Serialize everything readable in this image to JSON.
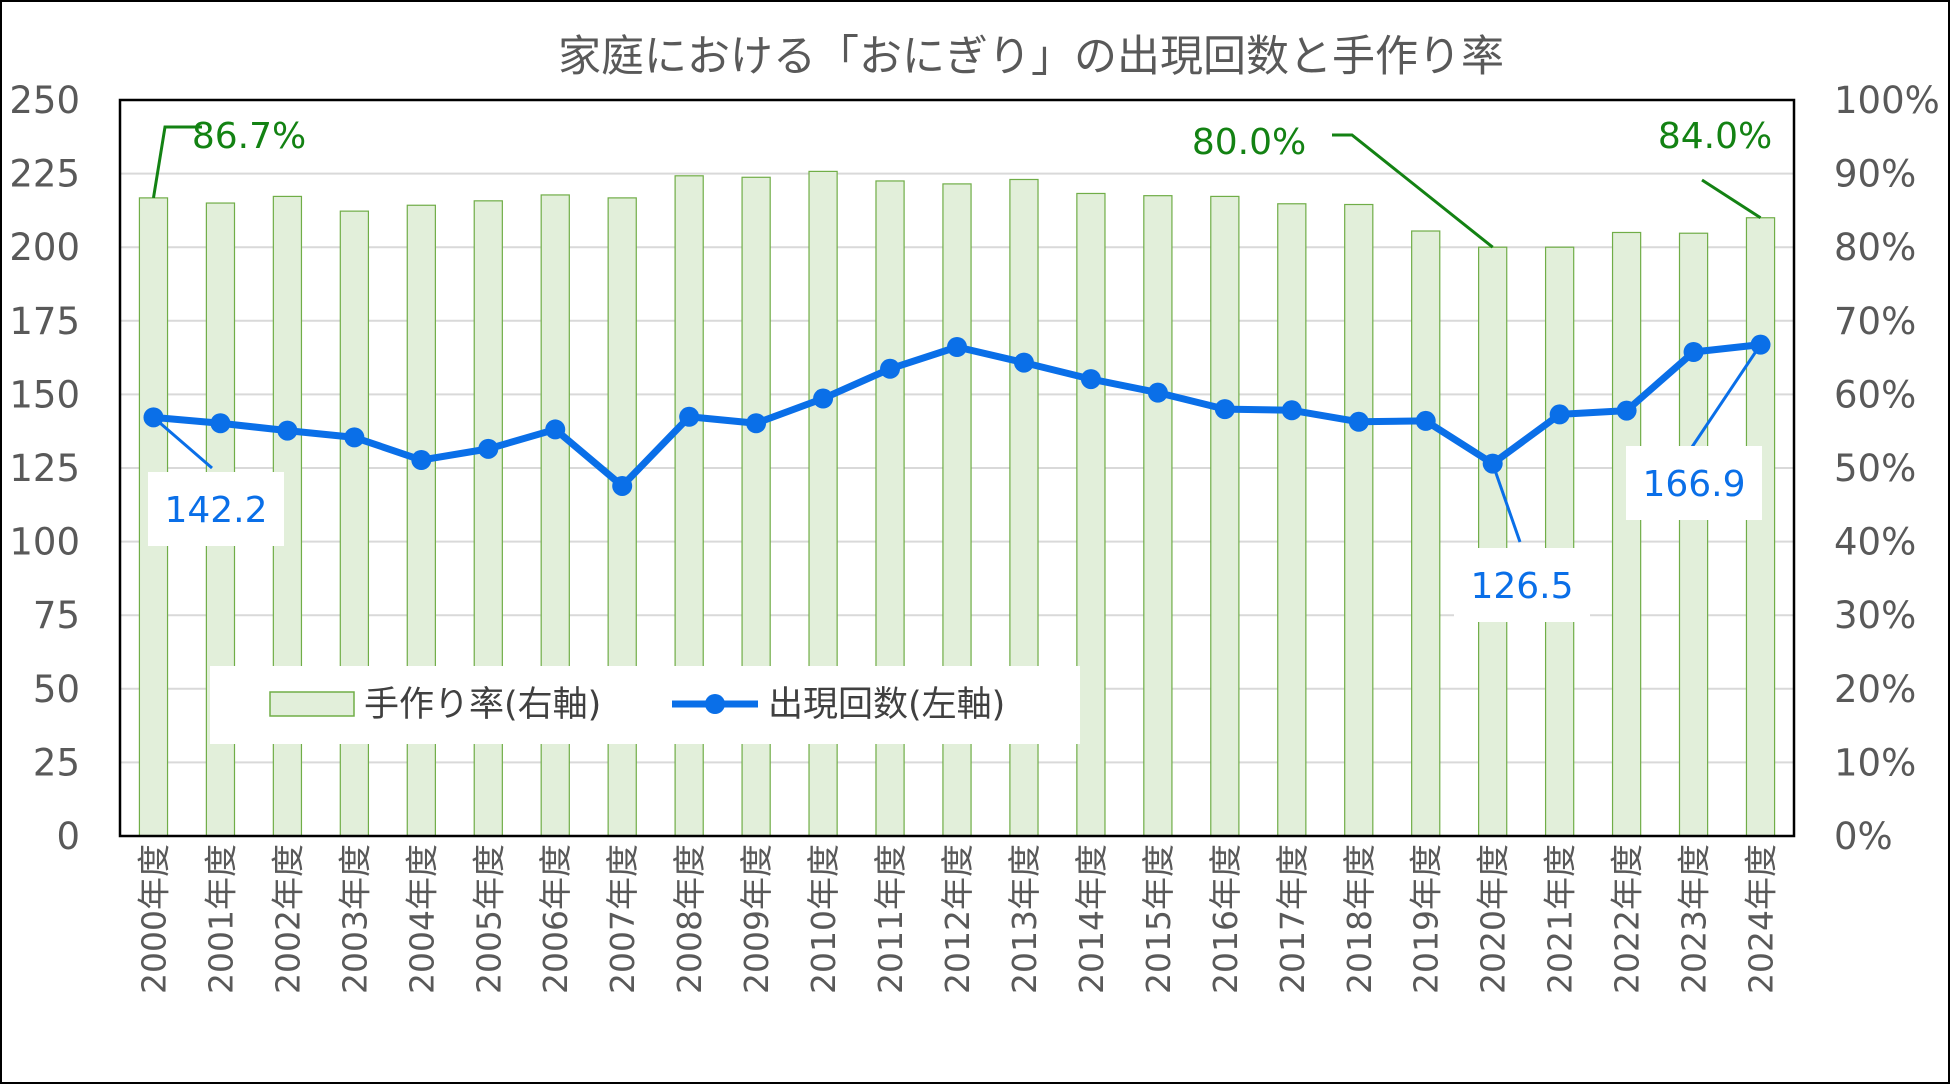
{
  "chart_data": {
    "type": "bar+line",
    "title": "家庭における「おにぎり」の出現回数と手作り率",
    "categories": [
      "2000年度",
      "2001年度",
      "2002年度",
      "2003年度",
      "2004年度",
      "2005年度",
      "2006年度",
      "2007年度",
      "2008年度",
      "2009年度",
      "2010年度",
      "2011年度",
      "2012年度",
      "2013年度",
      "2014年度",
      "2015年度",
      "2016年度",
      "2017年度",
      "2018年度",
      "2019年度",
      "2020年度",
      "2021年度",
      "2022年度",
      "2023年度",
      "2024年度"
    ],
    "series": [
      {
        "name": "手作り率(右軸)",
        "type": "bar",
        "axis": "right",
        "unit": "%",
        "values": [
          86.7,
          86.0,
          86.9,
          84.9,
          85.7,
          86.3,
          87.1,
          86.7,
          89.7,
          89.5,
          90.3,
          89.0,
          88.6,
          89.2,
          87.3,
          87.0,
          86.9,
          85.9,
          85.8,
          82.2,
          80.0,
          80.0,
          82.0,
          81.9,
          84.0
        ],
        "color": "#e2efda",
        "edge_color": "#70ad47"
      },
      {
        "name": "出現回数(左軸)",
        "type": "line",
        "axis": "left",
        "values": [
          142.2,
          140.2,
          137.7,
          135.4,
          127.7,
          131.5,
          138.1,
          118.9,
          142.4,
          140.2,
          148.6,
          158.7,
          166.1,
          160.8,
          155.2,
          150.6,
          145.0,
          144.6,
          140.7,
          141.0,
          126.5,
          143.2,
          144.5,
          164.4,
          166.9
        ],
        "color": "#0a6fe8"
      }
    ],
    "left_axis": {
      "min": 0,
      "max": 250,
      "step": 25,
      "ticks": [
        "0",
        "25",
        "50",
        "75",
        "100",
        "125",
        "150",
        "175",
        "200",
        "225",
        "250"
      ]
    },
    "right_axis": {
      "min": 0,
      "max": 100,
      "step": 10,
      "ticks": [
        "0%",
        "10%",
        "20%",
        "30%",
        "40%",
        "50%",
        "60%",
        "70%",
        "80%",
        "90%",
        "100%"
      ]
    },
    "gridlines": true,
    "legend": {
      "position": "bottom-left inside plot",
      "bar_label": "手作り率(右軸)",
      "line_label": "出現回数(左軸)"
    },
    "annotations": {
      "rate": [
        {
          "category_index": 0,
          "text": "86.7%"
        },
        {
          "category_index": 20,
          "text": "80.0%"
        },
        {
          "category_index": 24,
          "text": "84.0%"
        }
      ],
      "count": [
        {
          "category_index": 0,
          "text": "142.2"
        },
        {
          "category_index": 20,
          "text": "126.5"
        },
        {
          "category_index": 24,
          "text": "166.9"
        }
      ],
      "rate_color": "#138213",
      "count_color": "#0a6fe8"
    }
  }
}
